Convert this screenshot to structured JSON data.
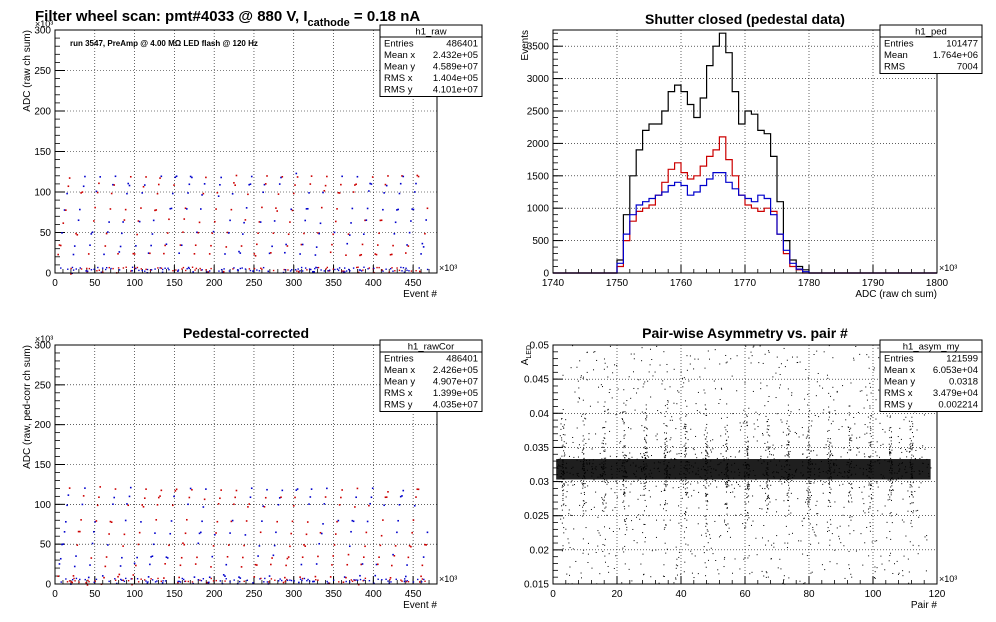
{
  "chart_data": [
    {
      "type": "scatter",
      "title_main": "Filter wheel scan: pmt#4033 @   880 V, I",
      "title_sub": "cathode",
      "title_tail": " = 0.18 nA",
      "annotation": "run 3547, PreAmp @ 4.00 MΩ  LED flash @  120 Hz",
      "xlabel": "Event #",
      "ylabel": "ADC (raw ch sum)",
      "x_exponent": "×10³",
      "y_exponent": "×10³",
      "xlim": [
        0,
        480
      ],
      "ylim": [
        0,
        300
      ],
      "xticks": [
        "0",
        "50",
        "100",
        "150",
        "200",
        "250",
        "300",
        "350",
        "400",
        "450"
      ],
      "yticks": [
        "0",
        "50",
        "100",
        "150",
        "200",
        "250",
        "300"
      ],
      "grid": true,
      "levels": [
        2,
        25,
        35,
        50,
        65,
        80,
        100,
        110,
        120
      ],
      "period": 19,
      "stats": {
        "name": "h1_raw",
        "rows": [
          [
            "Entries",
            "486401"
          ],
          [
            "Mean x",
            "2.432e+05"
          ],
          [
            "Mean y",
            "4.589e+07"
          ],
          [
            "RMS x",
            "1.404e+05"
          ],
          [
            "RMS y",
            "4.101e+07"
          ]
        ]
      }
    },
    {
      "type": "line",
      "title": "Shutter closed (pedestal data)",
      "xlabel": "ADC (raw ch sum)",
      "ylabel": "Events",
      "x_exponent": "×10³",
      "xlim": [
        1740,
        1800
      ],
      "ylim": [
        0,
        3750
      ],
      "xticks": [
        "1740",
        "1750",
        "1760",
        "1770",
        "1780",
        "1790",
        "1800"
      ],
      "yticks": [
        "0",
        "500",
        "1000",
        "1500",
        "2000",
        "2500",
        "3000",
        "3500"
      ],
      "grid": true,
      "series": [
        {
          "color": "#000000",
          "points": [
            [
              1749,
              0
            ],
            [
              1750,
              200
            ],
            [
              1751,
              900
            ],
            [
              1752,
              1500
            ],
            [
              1753,
              1900
            ],
            [
              1754,
              2200
            ],
            [
              1755,
              2300
            ],
            [
              1756,
              2300
            ],
            [
              1757,
              2500
            ],
            [
              1758,
              2800
            ],
            [
              1759,
              2900
            ],
            [
              1760,
              2800
            ],
            [
              1761,
              2600
            ],
            [
              1762,
              2400
            ],
            [
              1763,
              2700
            ],
            [
              1764,
              3200
            ],
            [
              1765,
              3500
            ],
            [
              1766,
              3700
            ],
            [
              1767,
              3400
            ],
            [
              1768,
              2800
            ],
            [
              1769,
              2300
            ],
            [
              1770,
              2500
            ],
            [
              1771,
              2450
            ],
            [
              1772,
              2200
            ],
            [
              1773,
              2150
            ],
            [
              1774,
              1800
            ],
            [
              1775,
              1100
            ],
            [
              1776,
              500
            ],
            [
              1777,
              200
            ],
            [
              1778,
              100
            ],
            [
              1779,
              50
            ],
            [
              1780,
              0
            ]
          ]
        },
        {
          "color": "#cc0000",
          "points": [
            [
              1749,
              0
            ],
            [
              1750,
              100
            ],
            [
              1751,
              500
            ],
            [
              1752,
              800
            ],
            [
              1753,
              950
            ],
            [
              1754,
              1000
            ],
            [
              1755,
              1050
            ],
            [
              1756,
              1200
            ],
            [
              1757,
              1400
            ],
            [
              1758,
              1600
            ],
            [
              1759,
              1700
            ],
            [
              1760,
              1550
            ],
            [
              1761,
              1450
            ],
            [
              1762,
              1500
            ],
            [
              1763,
              1650
            ],
            [
              1764,
              1800
            ],
            [
              1765,
              1900
            ],
            [
              1766,
              2100
            ],
            [
              1767,
              1750
            ],
            [
              1768,
              1500
            ],
            [
              1769,
              1200
            ],
            [
              1770,
              1050
            ],
            [
              1771,
              1000
            ],
            [
              1772,
              950
            ],
            [
              1773,
              1000
            ],
            [
              1774,
              950
            ],
            [
              1775,
              600
            ],
            [
              1776,
              300
            ],
            [
              1777,
              100
            ],
            [
              1778,
              50
            ],
            [
              1779,
              0
            ]
          ]
        },
        {
          "color": "#0000cc",
          "points": [
            [
              1749,
              0
            ],
            [
              1750,
              150
            ],
            [
              1751,
              600
            ],
            [
              1752,
              900
            ],
            [
              1753,
              1050
            ],
            [
              1754,
              1100
            ],
            [
              1755,
              1150
            ],
            [
              1756,
              1200
            ],
            [
              1757,
              1250
            ],
            [
              1758,
              1350
            ],
            [
              1759,
              1400
            ],
            [
              1760,
              1350
            ],
            [
              1761,
              1200
            ],
            [
              1762,
              1250
            ],
            [
              1763,
              1350
            ],
            [
              1764,
              1450
            ],
            [
              1765,
              1550
            ],
            [
              1766,
              1550
            ],
            [
              1767,
              1400
            ],
            [
              1768,
              1300
            ],
            [
              1769,
              1200
            ],
            [
              1770,
              1150
            ],
            [
              1771,
              1100
            ],
            [
              1772,
              1200
            ],
            [
              1773,
              1150
            ],
            [
              1774,
              900
            ],
            [
              1775,
              600
            ],
            [
              1776,
              350
            ],
            [
              1777,
              150
            ],
            [
              1778,
              60
            ],
            [
              1779,
              20
            ],
            [
              1780,
              0
            ]
          ]
        }
      ],
      "stats": {
        "name": "h1_ped",
        "rows": [
          [
            "Entries",
            "101477"
          ],
          [
            "Mean",
            "1.764e+06"
          ],
          [
            "RMS",
            "7004"
          ]
        ]
      }
    },
    {
      "type": "scatter",
      "title": "Pedestal-corrected",
      "xlabel": "Event #",
      "ylabel": "ADC (raw, ped-corr ch sum)",
      "x_exponent": "×10³",
      "y_exponent": "×10³",
      "xlim": [
        0,
        480
      ],
      "ylim": [
        0,
        300
      ],
      "xticks": [
        "0",
        "50",
        "100",
        "150",
        "200",
        "250",
        "300",
        "350",
        "400",
        "450"
      ],
      "yticks": [
        "0",
        "50",
        "100",
        "150",
        "200",
        "250",
        "300"
      ],
      "grid": true,
      "levels": [
        2,
        10,
        25,
        35,
        50,
        65,
        80,
        100,
        110,
        120
      ],
      "period": 19,
      "stats": {
        "name": "h1_rawCor",
        "rows": [
          [
            "Entries",
            "486401"
          ],
          [
            "Mean x",
            "2.426e+05"
          ],
          [
            "Mean y",
            "4.907e+07"
          ],
          [
            "RMS x",
            "1.399e+05"
          ],
          [
            "RMS y",
            "4.035e+07"
          ]
        ]
      }
    },
    {
      "type": "scatter",
      "title": "Pair-wise Asymmetry vs. pair #",
      "xlabel": "Pair #",
      "ylabel": "A",
      "ylabel_sub": "LED",
      "x_exponent": "×10³",
      "xlim": [
        0,
        120
      ],
      "ylim": [
        0.015,
        0.05
      ],
      "xticks": [
        "0",
        "20",
        "40",
        "60",
        "80",
        "100",
        "120"
      ],
      "yticks": [
        "0.015",
        "0.02",
        "0.025",
        "0.03",
        "0.035",
        "0.04",
        "0.045",
        "0.05"
      ],
      "grid": true,
      "band_center": 0.0318,
      "band_halfwidth": 0.0015,
      "spike_period": 6.4,
      "stats": {
        "name": "h1_asym_my",
        "rows": [
          [
            "Entries",
            "121599"
          ],
          [
            "Mean x",
            "6.053e+04"
          ],
          [
            "Mean y",
            "0.0318"
          ],
          [
            "RMS x",
            "3.479e+04"
          ],
          [
            "RMS y",
            "0.002214"
          ]
        ]
      }
    }
  ]
}
